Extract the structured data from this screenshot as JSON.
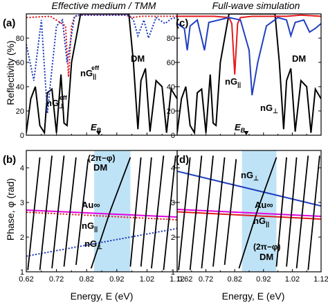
{
  "figure": {
    "left_title": "Effective medium / TMM",
    "right_title": "Full-wave simulation",
    "top_ylabel": "Reflectivity (%)",
    "bottom_ylabel": "Phase, φ (rad)",
    "xlabel": "Energy, E (eV)",
    "eb_label": "E",
    "eb_sub": "B"
  },
  "colors": {
    "dm": "#000000",
    "ng_par": "#e41a1c",
    "ng_perp": "#1f3fbf",
    "au": "#e100e1",
    "band": "#bfe3f6"
  },
  "chart_data": [
    {
      "panel": "a",
      "type": "line",
      "title": "Effective medium / TMM",
      "ylabel": "Reflectivity (%)",
      "xlim": [
        0.62,
        1.12
      ],
      "ylim": [
        0,
        100
      ],
      "xticks": [
        "0.62",
        "0.72",
        "0.82",
        "0.92",
        "1.02",
        "1.12"
      ],
      "yticks": [
        "0",
        "20",
        "40",
        "60",
        "80"
      ],
      "annotations": [
        "DM",
        "nG",
        "nG",
        "E"
      ],
      "series": [
        {
          "key": "dm",
          "style": "solid",
          "x": [
            0.62,
            0.635,
            0.65,
            0.665,
            0.68,
            0.69,
            0.705,
            0.72,
            0.735,
            0.745,
            0.755,
            0.77,
            0.8,
            0.96,
            0.975,
            0.99,
            1.0,
            1.015,
            1.03,
            1.05,
            1.07,
            1.085,
            1.1,
            1.12
          ],
          "y": [
            2,
            30,
            40,
            8,
            2,
            35,
            38,
            2,
            50,
            10,
            8,
            60,
            100,
            100,
            60,
            5,
            45,
            55,
            3,
            45,
            40,
            2,
            38,
            30
          ]
        },
        {
          "key": "ng_par",
          "style": "dotted",
          "x": [
            0.62,
            0.7,
            0.75,
            0.76,
            0.77,
            0.78,
            0.8,
            0.95,
            0.97,
            1.0,
            1.05,
            1.12
          ],
          "y": [
            97,
            98,
            90,
            48,
            90,
            98,
            99,
            99,
            97,
            98,
            98,
            98
          ]
        },
        {
          "key": "ng_perp",
          "style": "dotted",
          "x": [
            0.62,
            0.645,
            0.67,
            0.69,
            0.705,
            0.72,
            0.74,
            0.755,
            0.78,
            0.8,
            0.96,
            0.975,
            0.99,
            1.01,
            1.025,
            1.05,
            1.08,
            1.1,
            1.12
          ],
          "y": [
            75,
            45,
            95,
            18,
            55,
            90,
            95,
            60,
            98,
            99,
            99,
            95,
            82,
            95,
            80,
            97,
            92,
            96,
            97
          ]
        }
      ]
    },
    {
      "panel": "b",
      "type": "line",
      "ylabel": "Phase, φ (rad)",
      "xlabel": "Energy, E (eV)",
      "xlim": [
        0.62,
        1.12
      ],
      "ylim": [
        1,
        4.5
      ],
      "xticks": [
        "0.62",
        "0.72",
        "0.82",
        "0.92",
        "1.02",
        "1.12"
      ],
      "yticks": [
        "1",
        "2",
        "3",
        "4"
      ],
      "band": [
        0.845,
        0.965
      ],
      "annotations": [
        "(2π−φ)",
        "DM",
        "Au∞",
        "nG",
        "nG"
      ],
      "series": [
        {
          "key": "au",
          "style": "solid",
          "x": [
            0.62,
            1.12
          ],
          "y": [
            2.78,
            2.58
          ]
        },
        {
          "key": "ng_par",
          "style": "dotted",
          "x": [
            0.62,
            1.12
          ],
          "y": [
            2.72,
            2.5
          ]
        },
        {
          "key": "ng_perp",
          "style": "dotted",
          "x": [
            0.62,
            1.12
          ],
          "y": [
            1.45,
            2.25
          ]
        }
      ],
      "dm_segments": [
        {
          "x": [
            0.625,
            0.665
          ],
          "y": [
            1.05,
            4.3
          ]
        },
        {
          "x": [
            0.665,
            0.705
          ],
          "y": [
            1.05,
            4.35
          ]
        },
        {
          "x": [
            0.705,
            0.745
          ],
          "y": [
            1.1,
            4.35
          ]
        },
        {
          "x": [
            0.745,
            0.785
          ],
          "y": [
            1.15,
            4.3
          ]
        },
        {
          "x": [
            0.785,
            0.825
          ],
          "y": [
            1.2,
            4.25
          ]
        },
        {
          "x": [
            0.835,
            0.9,
            0.965
          ],
          "y": [
            1.1,
            2.8,
            4.3
          ]
        },
        {
          "x": [
            0.965,
            1.0
          ],
          "y": [
            1.15,
            4.3
          ]
        },
        {
          "x": [
            1.0,
            1.035
          ],
          "y": [
            1.15,
            4.3
          ]
        },
        {
          "x": [
            1.035,
            1.075
          ],
          "y": [
            1.1,
            4.35
          ]
        },
        {
          "x": [
            1.075,
            1.115
          ],
          "y": [
            1.05,
            4.35
          ]
        }
      ]
    },
    {
      "panel": "c",
      "type": "line",
      "title": "Full-wave simulation",
      "xlim": [
        0.62,
        1.12
      ],
      "ylim": [
        0,
        100
      ],
      "xticks": [
        "0.62",
        "0.72",
        "0.82",
        "0.92",
        "1.02",
        "1.12"
      ],
      "yticks": [
        "0",
        "20",
        "40",
        "60",
        "80"
      ],
      "annotations": [
        "nG",
        "nG",
        "DM",
        "E"
      ],
      "series": [
        {
          "key": "dm",
          "style": "solid",
          "x": [
            0.62,
            0.635,
            0.65,
            0.665,
            0.68,
            0.69,
            0.705,
            0.72,
            0.735,
            0.745,
            0.755,
            0.77,
            0.8,
            0.96,
            0.975,
            0.99,
            1.0,
            1.015,
            1.03,
            1.05,
            1.07,
            1.085,
            1.1,
            1.12
          ],
          "y": [
            2,
            30,
            40,
            8,
            2,
            35,
            38,
            2,
            50,
            10,
            8,
            60,
            100,
            100,
            60,
            5,
            45,
            55,
            3,
            45,
            40,
            2,
            38,
            30
          ]
        },
        {
          "key": "ng_par",
          "style": "solid",
          "x": [
            0.62,
            0.75,
            0.8,
            0.81,
            0.82,
            0.83,
            0.84,
            0.88,
            0.96,
            1.0,
            1.05,
            1.12
          ],
          "y": [
            98,
            98,
            97,
            92,
            50,
            92,
            97,
            98,
            98,
            98,
            99,
            98
          ]
        },
        {
          "key": "ng_perp",
          "style": "solid",
          "x": [
            0.62,
            0.645,
            0.655,
            0.665,
            0.69,
            0.705,
            0.715,
            0.73,
            0.8,
            0.84,
            0.87,
            0.88,
            0.9,
            0.93,
            0.97,
            1.0,
            1.015,
            1.03,
            1.06,
            1.08,
            1.1,
            1.12
          ],
          "y": [
            92,
            88,
            70,
            90,
            95,
            80,
            70,
            93,
            97,
            95,
            70,
            33,
            60,
            90,
            97,
            95,
            82,
            93,
            95,
            85,
            88,
            92
          ]
        }
      ]
    },
    {
      "panel": "d",
      "type": "line",
      "xlabel": "Energy, E (eV)",
      "xlim": [
        0.62,
        1.12
      ],
      "ylim": [
        1,
        4.5
      ],
      "xticks": [
        "0.62",
        "0.72",
        "0.82",
        "0.92",
        "1.02",
        "1.12"
      ],
      "yticks": [
        "1",
        "2",
        "3",
        "4"
      ],
      "band": [
        0.845,
        0.965
      ],
      "annotations": [
        "nG",
        "Au∞",
        "nG",
        "(2π−φ)",
        "DM"
      ],
      "series": [
        {
          "key": "ng_perp",
          "style": "solid",
          "x": [
            0.62,
            1.12
          ],
          "y": [
            3.9,
            2.9
          ]
        },
        {
          "key": "au",
          "style": "solid",
          "x": [
            0.62,
            1.12
          ],
          "y": [
            2.8,
            2.6
          ]
        },
        {
          "key": "ng_par",
          "style": "solid",
          "x": [
            0.62,
            1.12
          ],
          "y": [
            2.73,
            2.52
          ]
        }
      ],
      "dm_segments": [
        {
          "x": [
            0.625,
            0.665
          ],
          "y": [
            1.05,
            4.3
          ]
        },
        {
          "x": [
            0.665,
            0.705
          ],
          "y": [
            1.05,
            4.35
          ]
        },
        {
          "x": [
            0.705,
            0.745
          ],
          "y": [
            1.1,
            4.35
          ]
        },
        {
          "x": [
            0.745,
            0.785
          ],
          "y": [
            1.15,
            4.3
          ]
        },
        {
          "x": [
            0.785,
            0.825
          ],
          "y": [
            1.2,
            4.25
          ]
        },
        {
          "x": [
            0.835,
            0.9,
            0.965
          ],
          "y": [
            1.1,
            2.8,
            4.3
          ]
        },
        {
          "x": [
            0.965,
            1.0
          ],
          "y": [
            1.15,
            4.3
          ]
        },
        {
          "x": [
            1.0,
            1.035
          ],
          "y": [
            1.15,
            4.3
          ]
        },
        {
          "x": [
            1.035,
            1.075
          ],
          "y": [
            1.1,
            4.35
          ]
        },
        {
          "x": [
            1.075,
            1.115
          ],
          "y": [
            1.05,
            4.35
          ]
        }
      ]
    }
  ]
}
